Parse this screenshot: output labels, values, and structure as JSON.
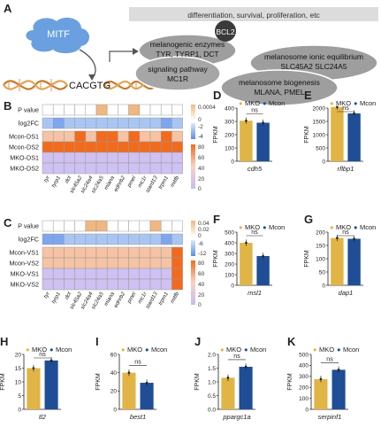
{
  "panel_letters": [
    "A",
    "B",
    "C",
    "D",
    "E",
    "F",
    "G",
    "H",
    "I",
    "J",
    "K"
  ],
  "colors": {
    "mko": "#e1b446",
    "mcon": "#1f4e96",
    "heat_low": "#cfc1f2",
    "heat_mid": "#f6c3a5",
    "heat_high": "#f26b1d",
    "log_pos": "#7ea5ef",
    "log_neg": "#a9c6f3",
    "p_low": "#ffffff",
    "p_high": "#f1b780",
    "top_bar": "#dcdcdc",
    "cluster": "#9e9e9e",
    "bcl2": "#3a3a3a"
  },
  "panel_a": {
    "mitf": "MITF",
    "motif": "CACGTG",
    "top_label": "differentiation, survival, proliferation, etc",
    "bcl2": "BCL2",
    "boxes": [
      {
        "lines": [
          "melanogenic enzymes",
          "TYR, TYRP1, DCT"
        ]
      },
      {
        "lines": [
          "melanosome ionic equilibrium",
          "SLC45A2  SLC24A5"
        ]
      },
      {
        "lines": [
          "signaling pathway",
          "MC1R"
        ]
      },
      {
        "lines": [
          "melanosome biogenesis",
          "MLANA, PMEL"
        ]
      }
    ]
  },
  "heat_b": {
    "rows": [
      "P value",
      "log2FC",
      "Mcon-DS1",
      "Mcon-DS2",
      "MKO-DS1",
      "MKO-DS2"
    ],
    "genes": [
      "tyr",
      "tyrp1",
      "dct",
      "slc45a2",
      "slc24a4",
      "slc24a5",
      "mlana",
      "ednrb2",
      "pmel",
      "mc1r",
      "stard13",
      "trpm1",
      "mitfb"
    ],
    "scale_p": [
      "0.0004",
      "0"
    ],
    "scale_log": [
      "-2",
      "-4"
    ],
    "scale_heat": [
      "80",
      "60",
      "40",
      "20",
      "0"
    ]
  },
  "heat_c": {
    "rows": [
      "P value",
      "log2FC",
      "Mcon-VS1",
      "Mcon-VS2",
      "MKO-VS1",
      "MKO-VS2"
    ],
    "genes": [
      "tyr",
      "tyrp1",
      "dct",
      "slc45a2",
      "slc24a4",
      "slc24a5",
      "mlana",
      "ednrb2",
      "pmel",
      "mc1r",
      "stard13",
      "trpm1",
      "mitfb"
    ],
    "scale_p": [
      "0.04",
      "0.02",
      "0"
    ],
    "scale_log": [
      "-6",
      "-12"
    ],
    "scale_heat": [
      "80",
      "60",
      "40",
      "20",
      "0"
    ]
  },
  "legend": {
    "mko": "MKO",
    "mcon": "Mcon"
  },
  "ns": "ns",
  "fpkm": "FPKM",
  "bar_charts": [
    {
      "letter": "D",
      "gene": "cdh5",
      "ylim": [
        0,
        400
      ],
      "ticks": [
        "0",
        "100",
        "200",
        "300",
        "400"
      ],
      "mko": 305,
      "mcon": 290
    },
    {
      "letter": "E",
      "gene": "rflbp1",
      "ylim": [
        0,
        2000
      ],
      "ticks": [
        "0",
        "500",
        "1000",
        "1500",
        "2000"
      ],
      "mko": 2060,
      "mcon": 1800
    },
    {
      "letter": "F",
      "gene": "msl1",
      "ylim": [
        0,
        500
      ],
      "ticks": [
        "0",
        "100",
        "200",
        "300",
        "400",
        "500"
      ],
      "mko": 400,
      "mcon": 275
    },
    {
      "letter": "G",
      "gene": "dap1",
      "ylim": [
        0,
        200
      ],
      "ticks": [
        "0",
        "50",
        "100",
        "150",
        "200"
      ],
      "mko": 178,
      "mcon": 175
    },
    {
      "letter": "H",
      "gene": "tl2",
      "ylim": [
        0,
        20
      ],
      "ticks": [
        "0",
        "5",
        "10",
        "15",
        "20"
      ],
      "mko": 15,
      "mcon": 17.8
    },
    {
      "letter": "I",
      "gene": "best1",
      "ylim": [
        0,
        60
      ],
      "ticks": [
        "0",
        "20",
        "40",
        "60"
      ],
      "mko": 40,
      "mcon": 29
    },
    {
      "letter": "J",
      "gene": "ppargc1a",
      "ylim": [
        0,
        2
      ],
      "ticks": [
        "0.0",
        "0.5",
        "1.0",
        "1.5",
        "2.0"
      ],
      "mko": 1.15,
      "mcon": 1.55
    },
    {
      "letter": "K",
      "gene": "serpinf1",
      "ylim": [
        0,
        500
      ],
      "ticks": [
        "0",
        "100",
        "200",
        "300",
        "400",
        "500"
      ],
      "mko": 275,
      "mcon": 360
    }
  ]
}
